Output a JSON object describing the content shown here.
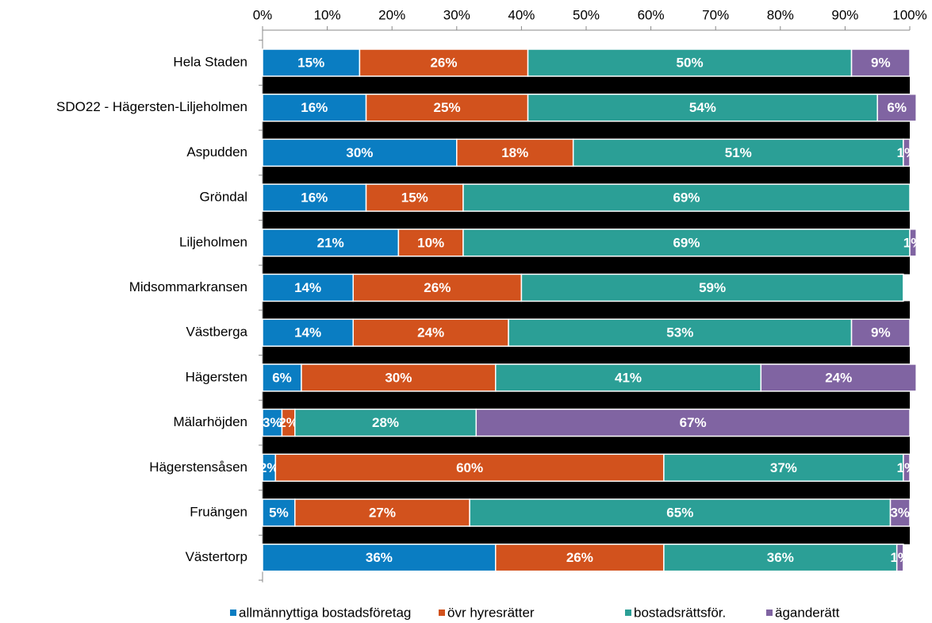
{
  "chart_data": {
    "type": "stacked-bar-horizontal",
    "categories": [
      "Hela Staden",
      "SDO22 - Hägersten-Liljeholmen",
      "Aspudden",
      "Gröndal",
      "Liljeholmen",
      "Midsommarkransen",
      "Västberga",
      "Hägersten",
      "Mälarhöjden",
      "Hägerstensåsen",
      "Fruängen",
      "Västertorp"
    ],
    "series": [
      {
        "name": "allmännyttiga bostadsföretag",
        "color": "#0a7dc2",
        "values": [
          15,
          16,
          30,
          16,
          21,
          14,
          14,
          6,
          3,
          2,
          5,
          36
        ],
        "value_labels": [
          "15%",
          "16%",
          "30%",
          "16%",
          "21%",
          "14%",
          "14%",
          "6%",
          "3%",
          "2%",
          "5%",
          "36%"
        ]
      },
      {
        "name": "övr hyresrätter",
        "color": "#d2521d",
        "values": [
          26,
          25,
          18,
          15,
          10,
          26,
          24,
          30,
          2,
          60,
          27,
          26
        ],
        "value_labels": [
          "26%",
          "25%",
          "18%",
          "15%",
          "10%",
          "26%",
          "24%",
          "30%",
          "2%",
          "60%",
          "27%",
          "26%"
        ]
      },
      {
        "name": "bostadsrättsför.",
        "color": "#2b9f96",
        "values": [
          50,
          54,
          51,
          69,
          69,
          59,
          53,
          41,
          28,
          37,
          65,
          36
        ],
        "value_labels": [
          "50%",
          "54%",
          "51%",
          "69%",
          "69%",
          "59%",
          "53%",
          "41%",
          "28%",
          "37%",
          "65%",
          "36%"
        ]
      },
      {
        "name": "äganderätt",
        "color": "#8064a2",
        "values": [
          9,
          6,
          1,
          0,
          1,
          0,
          9,
          24,
          67,
          1,
          3,
          1
        ],
        "value_labels": [
          "9%",
          "6%",
          "1%",
          null,
          "1%",
          null,
          "9%",
          "24%",
          "67%",
          "1%",
          "3%",
          "1%"
        ]
      }
    ],
    "xlim": [
      0,
      100
    ],
    "xticks": [
      {
        "value": 0,
        "label": "0%"
      },
      {
        "value": 10,
        "label": "10%"
      },
      {
        "value": 20,
        "label": "20%"
      },
      {
        "value": 30,
        "label": "30%"
      },
      {
        "value": 40,
        "label": "40%"
      },
      {
        "value": 50,
        "label": "50%"
      },
      {
        "value": 60,
        "label": "60%"
      },
      {
        "value": 70,
        "label": "70%"
      },
      {
        "value": 80,
        "label": "80%"
      },
      {
        "value": 90,
        "label": "90%"
      },
      {
        "value": 100,
        "label": "100%"
      }
    ],
    "legend": "bottom"
  }
}
